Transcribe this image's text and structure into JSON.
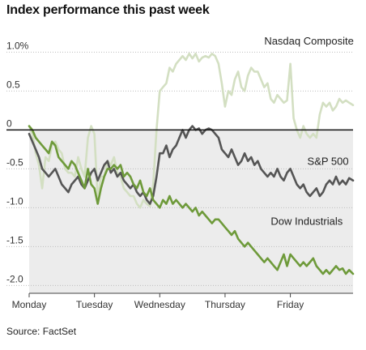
{
  "chart_data": {
    "type": "line",
    "title": "Index performance this past week",
    "source": "Source: FactSet",
    "xlabel": "",
    "ylabel": "",
    "ylim": [
      -2.1,
      1.15
    ],
    "xlim": [
      0,
      4.96
    ],
    "y_ticks": [
      {
        "value": 1.0,
        "label": "1.0%"
      },
      {
        "value": 0.5,
        "label": "0.5"
      },
      {
        "value": 0.0,
        "label": "0"
      },
      {
        "value": -0.5,
        "label": "-0.5"
      },
      {
        "value": -1.0,
        "label": "-1.0"
      },
      {
        "value": -1.5,
        "label": "-1.5"
      },
      {
        "value": -2.0,
        "label": "-2.0"
      }
    ],
    "x_ticks": [
      {
        "value": 0,
        "label": "Monday"
      },
      {
        "value": 1,
        "label": "Tuesday"
      },
      {
        "value": 2,
        "label": "Wednesday"
      },
      {
        "value": 3,
        "label": "Thursday"
      },
      {
        "value": 4,
        "label": "Friday"
      }
    ],
    "zero_line": 0,
    "shade_below_zero": true,
    "grid": "horizontal-dotted",
    "series": [
      {
        "name": "Nasdaq Composite",
        "color": "#d3dfc2",
        "x": [
          0,
          0.05,
          0.1,
          0.15,
          0.2,
          0.25,
          0.3,
          0.35,
          0.4,
          0.45,
          0.5,
          0.55,
          0.6,
          0.65,
          0.7,
          0.75,
          0.8,
          0.85,
          0.9,
          0.95,
          1.0,
          1.05,
          1.1,
          1.15,
          1.2,
          1.25,
          1.3,
          1.35,
          1.4,
          1.45,
          1.5,
          1.55,
          1.6,
          1.65,
          1.7,
          1.75,
          1.8,
          1.85,
          1.9,
          1.95,
          2.0,
          2.05,
          2.1,
          2.15,
          2.2,
          2.25,
          2.3,
          2.35,
          2.4,
          2.45,
          2.5,
          2.55,
          2.6,
          2.65,
          2.7,
          2.75,
          2.8,
          2.85,
          2.9,
          2.95,
          3.0,
          3.05,
          3.1,
          3.15,
          3.2,
          3.25,
          3.3,
          3.35,
          3.4,
          3.45,
          3.5,
          3.55,
          3.6,
          3.65,
          3.7,
          3.75,
          3.8,
          3.85,
          3.9,
          3.95,
          4.0,
          4.05,
          4.1,
          4.15,
          4.2,
          4.25,
          4.3,
          4.35,
          4.4,
          4.45,
          4.5,
          4.55,
          4.6,
          4.65,
          4.7,
          4.75,
          4.8,
          4.85,
          4.9,
          4.96
        ],
        "values": [
          0.05,
          -0.05,
          -0.3,
          -0.45,
          -0.75,
          -0.35,
          -0.4,
          -0.2,
          -0.15,
          -0.25,
          -0.3,
          -0.5,
          -0.55,
          -0.55,
          -0.6,
          -0.35,
          -0.5,
          -0.6,
          -0.1,
          0.05,
          -0.05,
          -0.9,
          -0.6,
          -0.6,
          -0.4,
          -0.45,
          -0.35,
          -0.55,
          -0.6,
          -0.75,
          -0.8,
          -0.85,
          -0.85,
          -0.95,
          -1.0,
          -0.9,
          -0.95,
          -0.98,
          -0.7,
          0.0,
          0.5,
          0.55,
          0.6,
          0.8,
          0.75,
          0.85,
          0.9,
          0.95,
          0.9,
          0.98,
          0.92,
          0.98,
          0.88,
          0.93,
          0.95,
          0.93,
          0.98,
          0.95,
          0.85,
          0.6,
          0.3,
          0.5,
          0.45,
          0.65,
          0.75,
          0.55,
          0.5,
          0.7,
          0.8,
          0.75,
          0.75,
          0.65,
          0.55,
          0.6,
          0.4,
          0.35,
          0.45,
          0.4,
          0.35,
          0.38,
          0.85,
          0.15,
          0.0,
          -0.1,
          0.05,
          -0.05,
          -0.1,
          -0.05,
          -0.1,
          0.2,
          0.35,
          0.3,
          0.35,
          0.25,
          0.3,
          0.4,
          0.35,
          0.38,
          0.35,
          0.32
        ],
        "label_value": 1.1,
        "label_x": 3.6
      },
      {
        "name": "S&P 500",
        "color": "#555555",
        "x": [
          0,
          0.05,
          0.1,
          0.15,
          0.2,
          0.25,
          0.3,
          0.35,
          0.4,
          0.45,
          0.5,
          0.55,
          0.6,
          0.65,
          0.7,
          0.75,
          0.8,
          0.85,
          0.9,
          0.95,
          1.0,
          1.05,
          1.1,
          1.15,
          1.2,
          1.25,
          1.3,
          1.35,
          1.4,
          1.45,
          1.5,
          1.55,
          1.6,
          1.65,
          1.7,
          1.75,
          1.8,
          1.85,
          1.9,
          1.95,
          2.0,
          2.05,
          2.1,
          2.15,
          2.2,
          2.25,
          2.3,
          2.35,
          2.4,
          2.45,
          2.5,
          2.55,
          2.6,
          2.65,
          2.7,
          2.75,
          2.8,
          2.85,
          2.9,
          2.95,
          3.0,
          3.05,
          3.1,
          3.15,
          3.2,
          3.25,
          3.3,
          3.35,
          3.4,
          3.45,
          3.5,
          3.55,
          3.6,
          3.65,
          3.7,
          3.75,
          3.8,
          3.85,
          3.9,
          3.95,
          4.0,
          4.05,
          4.1,
          4.15,
          4.2,
          4.25,
          4.3,
          4.35,
          4.4,
          4.45,
          4.5,
          4.55,
          4.6,
          4.65,
          4.7,
          4.75,
          4.8,
          4.85,
          4.9,
          4.96
        ],
        "values": [
          -0.05,
          -0.15,
          -0.25,
          -0.35,
          -0.5,
          -0.55,
          -0.6,
          -0.55,
          -0.5,
          -0.6,
          -0.7,
          -0.75,
          -0.8,
          -0.7,
          -0.65,
          -0.6,
          -0.7,
          -0.75,
          -0.65,
          -0.55,
          -0.5,
          -0.65,
          -0.55,
          -0.45,
          -0.4,
          -0.55,
          -0.5,
          -0.6,
          -0.55,
          -0.65,
          -0.7,
          -0.75,
          -0.7,
          -0.8,
          -0.85,
          -0.8,
          -0.9,
          -0.95,
          -0.85,
          -0.6,
          -0.3,
          -0.3,
          -0.2,
          -0.35,
          -0.25,
          -0.2,
          -0.1,
          0.0,
          -0.1,
          0.0,
          0.05,
          0.0,
          0.02,
          -0.05,
          0.0,
          0.02,
          0.0,
          -0.05,
          -0.1,
          -0.25,
          -0.3,
          -0.35,
          -0.25,
          -0.35,
          -0.45,
          -0.4,
          -0.3,
          -0.4,
          -0.35,
          -0.45,
          -0.4,
          -0.5,
          -0.55,
          -0.6,
          -0.55,
          -0.6,
          -0.5,
          -0.6,
          -0.65,
          -0.55,
          -0.5,
          -0.6,
          -0.7,
          -0.75,
          -0.7,
          -0.8,
          -0.85,
          -0.8,
          -0.75,
          -0.85,
          -0.8,
          -0.7,
          -0.65,
          -0.7,
          -0.6,
          -0.7,
          -0.65,
          -0.7,
          -0.62,
          -0.65
        ],
        "label_value": -0.45,
        "label_x": 4.26
      },
      {
        "name": "Dow Industrials",
        "color": "#6e9a3a",
        "x": [
          0,
          0.05,
          0.1,
          0.15,
          0.2,
          0.25,
          0.3,
          0.35,
          0.4,
          0.45,
          0.5,
          0.55,
          0.6,
          0.65,
          0.7,
          0.75,
          0.8,
          0.85,
          0.9,
          0.95,
          1.0,
          1.05,
          1.1,
          1.15,
          1.2,
          1.25,
          1.3,
          1.35,
          1.4,
          1.45,
          1.5,
          1.55,
          1.6,
          1.65,
          1.7,
          1.75,
          1.8,
          1.85,
          1.9,
          1.95,
          2.0,
          2.05,
          2.1,
          2.15,
          2.2,
          2.25,
          2.3,
          2.35,
          2.4,
          2.45,
          2.5,
          2.55,
          2.6,
          2.65,
          2.7,
          2.75,
          2.8,
          2.85,
          2.9,
          2.95,
          3.0,
          3.05,
          3.1,
          3.15,
          3.2,
          3.25,
          3.3,
          3.35,
          3.4,
          3.45,
          3.5,
          3.55,
          3.6,
          3.65,
          3.7,
          3.75,
          3.8,
          3.85,
          3.9,
          3.95,
          4.0,
          4.05,
          4.1,
          4.15,
          4.2,
          4.25,
          4.3,
          4.35,
          4.4,
          4.45,
          4.5,
          4.55,
          4.6,
          4.65,
          4.7,
          4.75,
          4.8,
          4.85,
          4.9,
          4.96
        ],
        "values": [
          0.05,
          0.0,
          -0.1,
          -0.15,
          -0.2,
          -0.25,
          -0.3,
          -0.15,
          -0.2,
          -0.35,
          -0.4,
          -0.45,
          -0.5,
          -0.4,
          -0.45,
          -0.55,
          -0.65,
          -0.75,
          -0.5,
          -0.7,
          -0.75,
          -0.95,
          -0.75,
          -0.6,
          -0.5,
          -0.5,
          -0.45,
          -0.5,
          -0.45,
          -0.6,
          -0.55,
          -0.6,
          -0.7,
          -0.75,
          -0.65,
          -0.8,
          -0.85,
          -0.75,
          -0.9,
          -0.95,
          -1.0,
          -0.9,
          -0.95,
          -0.85,
          -0.95,
          -0.9,
          -0.95,
          -1.0,
          -0.95,
          -1.0,
          -1.05,
          -1.0,
          -1.1,
          -1.05,
          -1.1,
          -1.15,
          -1.2,
          -1.15,
          -1.15,
          -1.2,
          -1.25,
          -1.3,
          -1.35,
          -1.3,
          -1.4,
          -1.45,
          -1.5,
          -1.45,
          -1.5,
          -1.55,
          -1.6,
          -1.65,
          -1.7,
          -1.65,
          -1.7,
          -1.75,
          -1.8,
          -1.7,
          -1.6,
          -1.75,
          -1.6,
          -1.65,
          -1.7,
          -1.75,
          -1.7,
          -1.75,
          -1.7,
          -1.65,
          -1.75,
          -1.8,
          -1.85,
          -1.8,
          -1.85,
          -1.8,
          -1.75,
          -1.8,
          -1.78,
          -1.85,
          -1.8,
          -1.85
        ],
        "label_value": -1.22,
        "label_x": 3.7
      }
    ]
  }
}
